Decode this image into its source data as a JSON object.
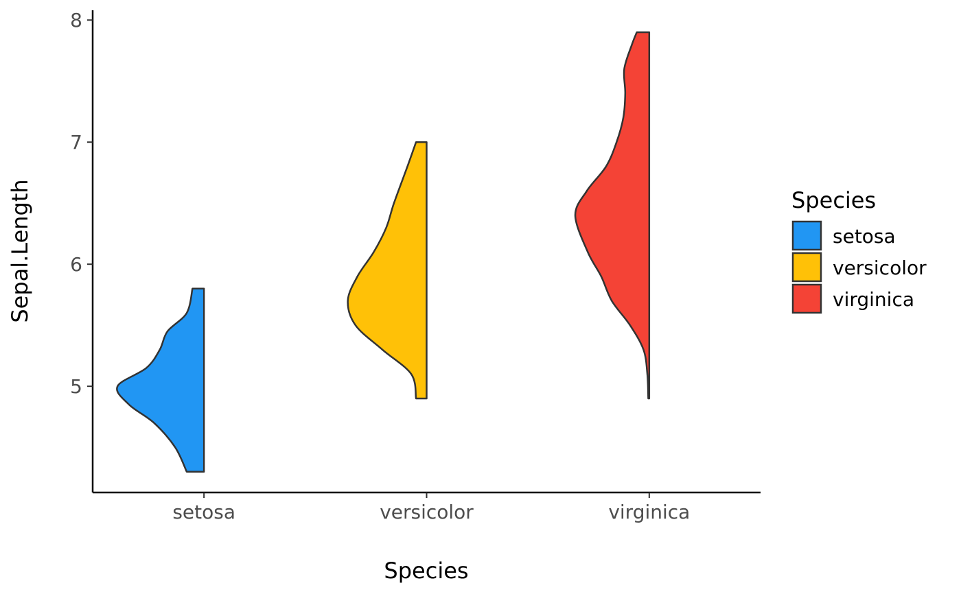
{
  "chart_data": {
    "type": "half-violin",
    "xlabel": "Species",
    "ylabel": "Sepal.Length",
    "categories": [
      "setosa",
      "versicolor",
      "virginica"
    ],
    "y_ticks": [
      5,
      6,
      7,
      8
    ],
    "ylim": [
      4.13,
      8.08
    ],
    "grid": false,
    "legend": {
      "title": "Species",
      "position": "right",
      "entries": [
        "setosa",
        "versicolor",
        "virginica"
      ]
    },
    "series": [
      {
        "name": "setosa",
        "color": "#2196F3",
        "min": 4.3,
        "max": 5.8,
        "profile": [
          [
            4.3,
            0.18
          ],
          [
            4.5,
            0.3
          ],
          [
            4.7,
            0.52
          ],
          [
            4.85,
            0.78
          ],
          [
            5.0,
            0.9
          ],
          [
            5.15,
            0.6
          ],
          [
            5.3,
            0.46
          ],
          [
            5.45,
            0.38
          ],
          [
            5.6,
            0.18
          ],
          [
            5.8,
            0.12
          ]
        ]
      },
      {
        "name": "versicolor",
        "color": "#FFC107",
        "min": 4.9,
        "max": 7.0,
        "profile": [
          [
            4.9,
            0.11
          ],
          [
            5.1,
            0.16
          ],
          [
            5.3,
            0.46
          ],
          [
            5.5,
            0.74
          ],
          [
            5.7,
            0.82
          ],
          [
            5.9,
            0.72
          ],
          [
            6.1,
            0.55
          ],
          [
            6.3,
            0.42
          ],
          [
            6.5,
            0.34
          ],
          [
            6.8,
            0.2
          ],
          [
            7.0,
            0.11
          ]
        ]
      },
      {
        "name": "virginica",
        "color": "#F44336",
        "min": 4.9,
        "max": 7.9,
        "profile": [
          [
            4.9,
            0.01
          ],
          [
            5.1,
            0.02
          ],
          [
            5.3,
            0.06
          ],
          [
            5.5,
            0.2
          ],
          [
            5.7,
            0.39
          ],
          [
            5.9,
            0.5
          ],
          [
            6.1,
            0.64
          ],
          [
            6.4,
            0.77
          ],
          [
            6.6,
            0.65
          ],
          [
            6.8,
            0.45
          ],
          [
            7.0,
            0.34
          ],
          [
            7.2,
            0.27
          ],
          [
            7.4,
            0.25
          ],
          [
            7.6,
            0.26
          ],
          [
            7.8,
            0.18
          ],
          [
            7.9,
            0.13
          ]
        ]
      }
    ]
  }
}
